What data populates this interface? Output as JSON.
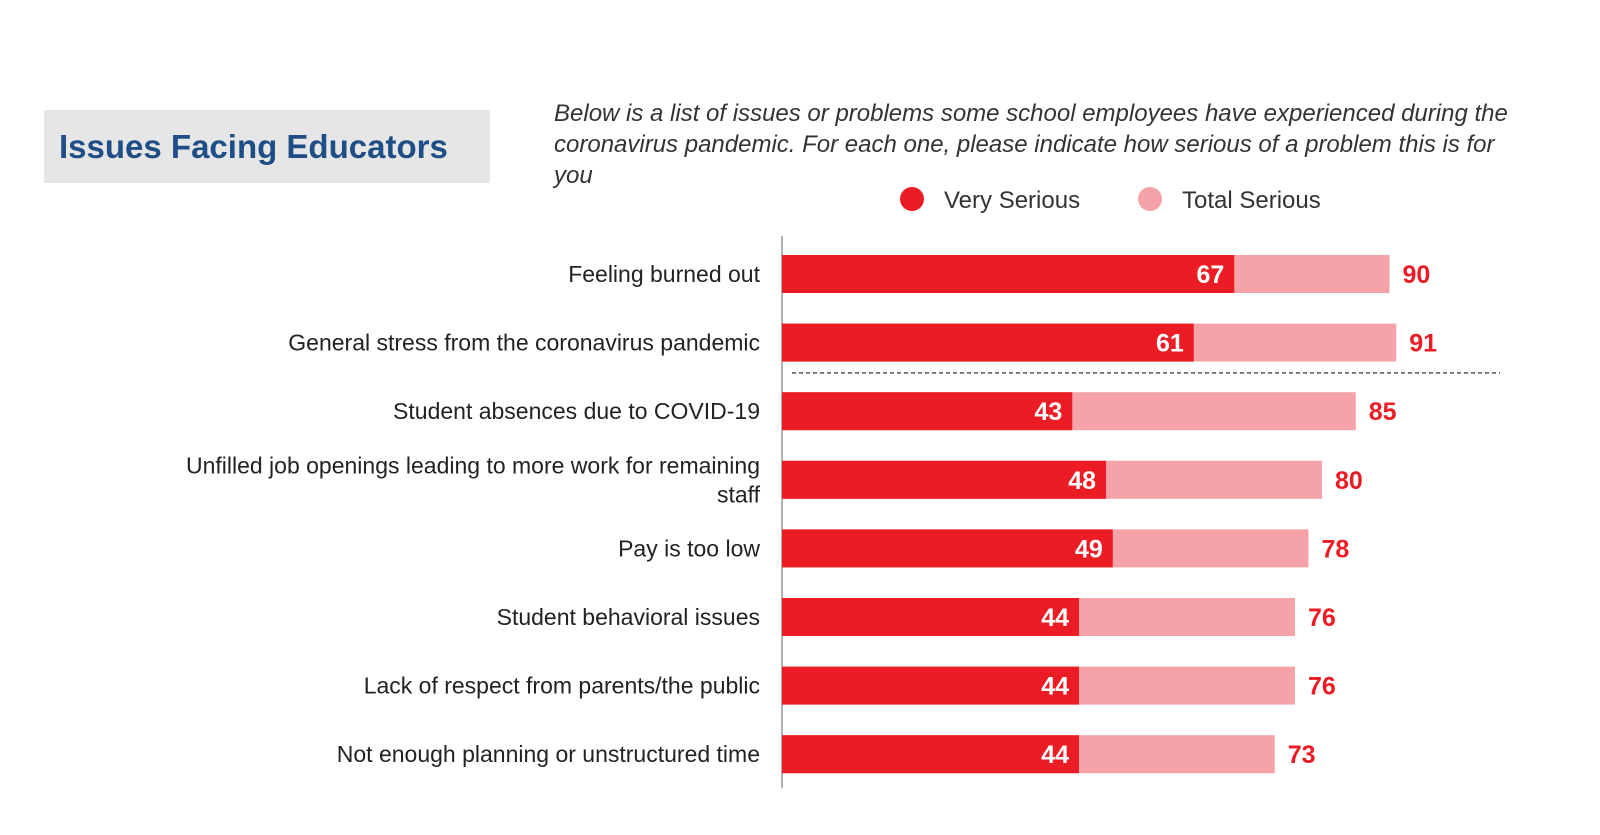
{
  "header": {
    "title": "Issues Facing Educators",
    "question": "Below is a list of issues or problems some school employees have experienced during the coronavirus pandemic. For each one, please indicate how serious of a problem this is for you"
  },
  "colors": {
    "very_serious": "#ec1c24",
    "total_serious": "#f5a3a8",
    "label_text": "#222222",
    "total_label": "#ec1c24",
    "very_label": "#ffffff"
  },
  "chart_data": {
    "type": "bar",
    "orientation": "horizontal",
    "stacked_overlay": true,
    "title": "Issues Facing Educators",
    "legend": [
      "Very Serious",
      "Total Serious"
    ],
    "legend_position": "top",
    "categories": [
      "Feeling burned out",
      "General stress from the coronavirus pandemic",
      "Student absences due to COVID-19",
      "Unfilled job openings leading to more work for remaining staff",
      "Pay is too low",
      "Student behavioral issues",
      "Lack of respect from parents/the public",
      "Not enough planning or unstructured time"
    ],
    "category_lines": [
      [
        "Feeling burned out"
      ],
      [
        "General stress from the coronavirus pandemic"
      ],
      [
        "Student absences due to COVID-19"
      ],
      [
        "Unfilled job openings leading to more work for remaining",
        "staff"
      ],
      [
        "Pay is too low"
      ],
      [
        "Student behavioral issues"
      ],
      [
        "Lack of respect from parents/the public"
      ],
      [
        "Not enough planning or unstructured time"
      ]
    ],
    "series": [
      {
        "name": "Very Serious",
        "values": [
          67,
          61,
          43,
          48,
          49,
          44,
          44,
          44
        ]
      },
      {
        "name": "Total Serious",
        "values": [
          90,
          91,
          85,
          80,
          78,
          76,
          76,
          73
        ]
      }
    ],
    "xlim": [
      0,
      100
    ],
    "separator_after_index": 1
  }
}
